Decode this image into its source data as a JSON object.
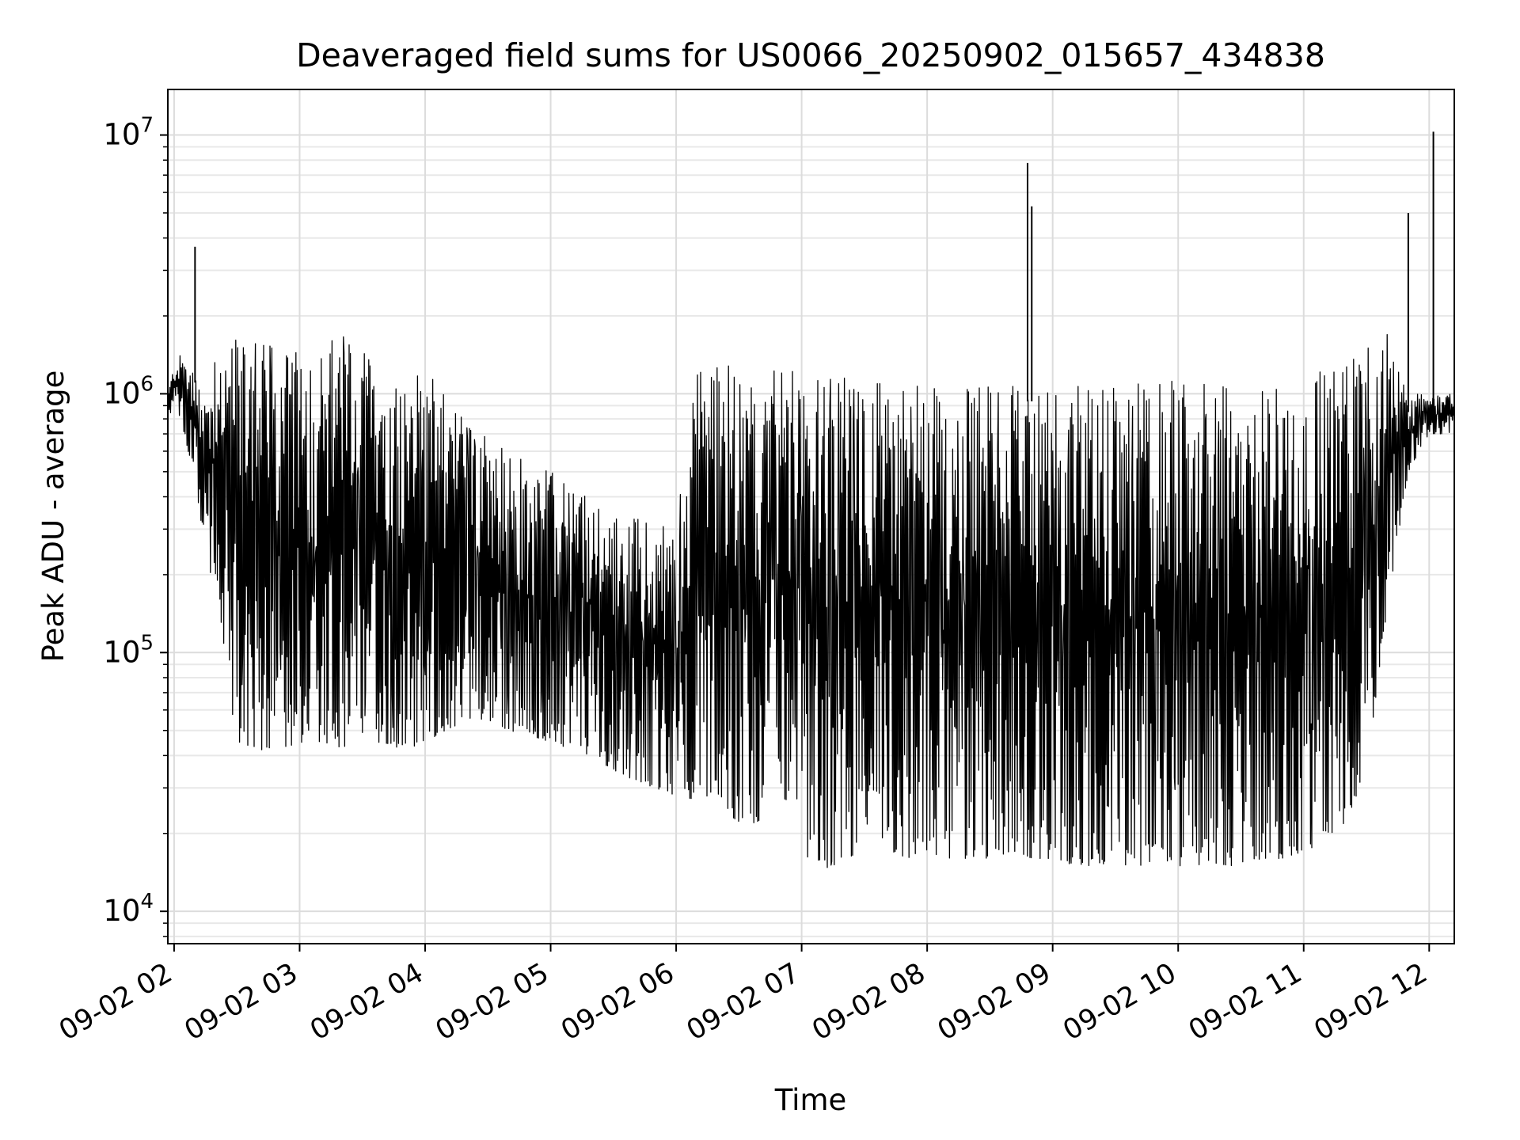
{
  "chart_data": {
    "type": "line",
    "title": "Deaveraged field sums for US0066_20250902_015657_434838",
    "xlabel": "Time",
    "ylabel": "Peak ADU - average",
    "yscale": "log",
    "ylim": [
      7500,
      15000000
    ],
    "xlim": [
      "09-02 01:57",
      "09-02 12:12"
    ],
    "grid": true,
    "x_ticks": [
      "09-02 02",
      "09-02 03",
      "09-02 04",
      "09-02 05",
      "09-02 06",
      "09-02 07",
      "09-02 08",
      "09-02 09",
      "09-02 10",
      "09-02 11",
      "09-02 12"
    ],
    "y_ticks": [
      {
        "base": "10",
        "exp": "4",
        "value": 10000
      },
      {
        "base": "10",
        "exp": "5",
        "value": 100000
      },
      {
        "base": "10",
        "exp": "6",
        "value": 1000000
      },
      {
        "base": "10",
        "exp": "7",
        "value": 10000000
      }
    ],
    "line_color": "#000000",
    "series": [
      {
        "x": [
          "09-02 01:57",
          "09-02 02:00",
          "09-02 02:05",
          "09-02 02:10",
          "09-02 02:15",
          "09-02 02:20",
          "09-02 02:30",
          "09-02 02:40",
          "09-02 02:50",
          "09-02 03:00",
          "09-02 03:10",
          "09-02 03:20",
          "09-02 03:30",
          "09-02 03:40",
          "09-02 03:50",
          "09-02 04:00",
          "09-02 04:10",
          "09-02 04:20",
          "09-02 04:30",
          "09-02 04:40",
          "09-02 04:50",
          "09-02 05:00",
          "09-02 05:10",
          "09-02 05:20",
          "09-02 05:30",
          "09-02 05:40",
          "09-02 05:50",
          "09-02 06:00",
          "09-02 06:10",
          "09-02 06:20",
          "09-02 06:30",
          "09-02 06:40",
          "09-02 06:45",
          "09-02 06:50",
          "09-02 07:00",
          "09-02 07:10",
          "09-02 07:20",
          "09-02 07:30",
          "09-02 07:40",
          "09-02 07:50",
          "09-02 08:00",
          "09-02 08:10",
          "09-02 08:20",
          "09-02 08:30",
          "09-02 08:40",
          "09-02 08:50",
          "09-02 09:00",
          "09-02 09:10",
          "09-02 09:20",
          "09-02 09:30",
          "09-02 09:40",
          "09-02 09:50",
          "09-02 10:00",
          "09-02 10:10",
          "09-02 10:20",
          "09-02 10:30",
          "09-02 10:40",
          "09-02 10:50",
          "09-02 11:00",
          "09-02 11:10",
          "09-02 11:20",
          "09-02 11:30",
          "09-02 11:40",
          "09-02 11:50",
          "09-02 12:00",
          "09-02 12:12"
        ],
        "upper": [
          1000000,
          1300000,
          1500000,
          1300000,
          1000000,
          1600000,
          1700000,
          1600000,
          1500000,
          1500000,
          1500000,
          1700000,
          1500000,
          1300000,
          1100000,
          1300000,
          1000000,
          800000,
          700000,
          600000,
          550000,
          500000,
          450000,
          400000,
          350000,
          330000,
          320000,
          320000,
          1300000,
          1300000,
          1300000,
          1200000,
          1200000,
          1300000,
          1200000,
          1200000,
          1200000,
          1200000,
          1100000,
          1100000,
          1100000,
          1100000,
          1100000,
          1100000,
          1100000,
          1100000,
          1100000,
          1100000,
          1100000,
          1100000,
          1150000,
          1150000,
          1150000,
          1150000,
          1150000,
          1150000,
          1150000,
          1150000,
          1200000,
          1250000,
          1350000,
          1500000,
          1700000,
          1000000,
          1000000,
          1000000
        ],
        "lower": [
          800000,
          900000,
          700000,
          450000,
          250000,
          150000,
          45000,
          42000,
          42000,
          45000,
          45000,
          42000,
          45000,
          45000,
          42000,
          45000,
          50000,
          55000,
          55000,
          50000,
          48000,
          45000,
          42000,
          40000,
          35000,
          32000,
          30000,
          28000,
          27000,
          26000,
          22000,
          22000,
          60000,
          30000,
          17000,
          14000,
          16000,
          17000,
          17000,
          16000,
          17000,
          16000,
          16000,
          16000,
          17000,
          16000,
          16000,
          15000,
          15000,
          15000,
          15000,
          15000,
          15000,
          15000,
          15000,
          15000,
          16000,
          16000,
          17000,
          18000,
          22000,
          35000,
          150000,
          500000,
          700000,
          700000
        ],
        "spikes": [
          {
            "x": "09-02 02:10",
            "y": 3700000
          },
          {
            "x": "09-02 08:48",
            "y": 7800000
          },
          {
            "x": "09-02 08:50",
            "y": 5300000
          },
          {
            "x": "09-02 11:50",
            "y": 5000000
          },
          {
            "x": "09-02 12:02",
            "y": 10300000
          }
        ]
      }
    ]
  }
}
